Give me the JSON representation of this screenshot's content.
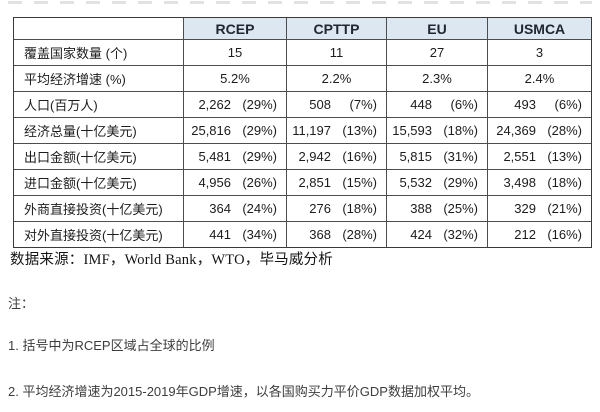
{
  "table": {
    "columns": [
      "RCEP",
      "CPTTP",
      "EU",
      "USMCA"
    ],
    "rows": [
      {
        "label": "覆盖国家数量 (个)",
        "cells": [
          {
            "v": "15",
            "p": ""
          },
          {
            "v": "11",
            "p": ""
          },
          {
            "v": "27",
            "p": ""
          },
          {
            "v": "3",
            "p": ""
          }
        ]
      },
      {
        "label": "平均经济增速 (%)",
        "cells": [
          {
            "v": "5.2%",
            "p": ""
          },
          {
            "v": "2.2%",
            "p": ""
          },
          {
            "v": "2.3%",
            "p": ""
          },
          {
            "v": "2.4%",
            "p": ""
          }
        ]
      },
      {
        "label": "人口(百万人)",
        "cells": [
          {
            "v": "2,262",
            "p": "(29%)"
          },
          {
            "v": "508",
            "p": "(7%)"
          },
          {
            "v": "448",
            "p": "(6%)"
          },
          {
            "v": "493",
            "p": "(6%)"
          }
        ]
      },
      {
        "label": "经济总量(十亿美元)",
        "cells": [
          {
            "v": "25,816",
            "p": "(29%)"
          },
          {
            "v": "11,197",
            "p": "(13%)"
          },
          {
            "v": "15,593",
            "p": "(18%)"
          },
          {
            "v": "24,369",
            "p": "(28%)"
          }
        ]
      },
      {
        "label": "出口金额(十亿美元)",
        "cells": [
          {
            "v": "5,481",
            "p": "(29%)"
          },
          {
            "v": "2,942",
            "p": "(16%)"
          },
          {
            "v": "5,815",
            "p": "(31%)"
          },
          {
            "v": "2,551",
            "p": "(13%)"
          }
        ]
      },
      {
        "label": "进口金额(十亿美元)",
        "cells": [
          {
            "v": "4,956",
            "p": "(26%)"
          },
          {
            "v": "2,851",
            "p": "(15%)"
          },
          {
            "v": "5,532",
            "p": "(29%)"
          },
          {
            "v": "3,498",
            "p": "(18%)"
          }
        ]
      },
      {
        "label": "外商直接投资(十亿美元)",
        "cells": [
          {
            "v": "364",
            "p": "(24%)"
          },
          {
            "v": "276",
            "p": "(18%)"
          },
          {
            "v": "388",
            "p": "(25%)"
          },
          {
            "v": "329",
            "p": "(21%)"
          }
        ]
      },
      {
        "label": "对外直接投资(十亿美元)",
        "cells": [
          {
            "v": "441",
            "p": "(34%)"
          },
          {
            "v": "368",
            "p": "(28%)"
          },
          {
            "v": "424",
            "p": "(32%)"
          },
          {
            "v": "212",
            "p": "(16%)"
          }
        ]
      }
    ],
    "header_bg": "#dce7f2",
    "border_color": "#4d4d4d"
  },
  "source": "数据来源：IMF，World Bank，WTO，毕马威分析",
  "notes": {
    "label": "注：",
    "items": [
      "1. 括号中为RCEP区域占全球的比例",
      "2. 平均经济增速为2015-2019年GDP增速，以各国购买力平价GDP数据加权平均。"
    ]
  }
}
